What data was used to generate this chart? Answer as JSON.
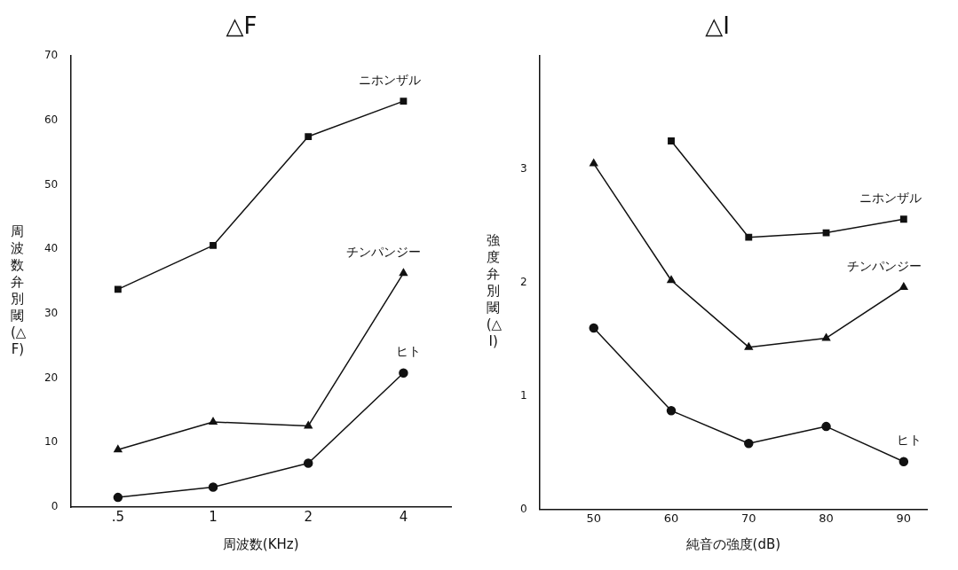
{
  "chart_data": [
    {
      "type": "line",
      "title": "△F",
      "xlabel": "周波数(KHz)",
      "ylabel": "周波数弁別閾(△F)",
      "categories": [
        ".5",
        "1",
        "2",
        "4"
      ],
      "ylim": [
        0,
        70
      ],
      "yticks": [
        0,
        10,
        20,
        30,
        40,
        50,
        60,
        70
      ],
      "grid": false,
      "legend": false,
      "series": [
        {
          "name": "ニホンザル",
          "color": "#111111",
          "marker": "square",
          "values": [
            33.8,
            40.6,
            57.5,
            63.0
          ]
        },
        {
          "name": "チンパンジー",
          "color": "#111111",
          "marker": "triangle",
          "values": [
            8.9,
            13.2,
            12.6,
            36.3
          ]
        },
        {
          "name": "ヒト",
          "color": "#111111",
          "marker": "circle",
          "values": [
            1.5,
            3.1,
            6.8,
            20.8
          ]
        }
      ]
    },
    {
      "type": "line",
      "title": "△I",
      "xlabel": "純音の強度(dB)",
      "ylabel": "強度弁別閾(△I)",
      "x": [
        50,
        60,
        70,
        80,
        90
      ],
      "xlim": [
        43,
        93
      ],
      "xticks": [
        50,
        60,
        70,
        80,
        90
      ],
      "ylim": [
        0,
        4
      ],
      "yticks": [
        0,
        1,
        2,
        3
      ],
      "grid": false,
      "legend": false,
      "series": [
        {
          "name": "ニホンザル",
          "color": "#111111",
          "marker": "square",
          "values": [
            null,
            3.25,
            2.4,
            2.44,
            2.56
          ]
        },
        {
          "name": "チンパンジー",
          "color": "#111111",
          "marker": "triangle",
          "values": [
            3.05,
            2.02,
            1.43,
            1.51,
            1.96
          ]
        },
        {
          "name": "ヒト",
          "color": "#111111",
          "marker": "circle",
          "values": [
            1.6,
            0.87,
            0.58,
            0.73,
            0.42
          ]
        }
      ]
    }
  ]
}
